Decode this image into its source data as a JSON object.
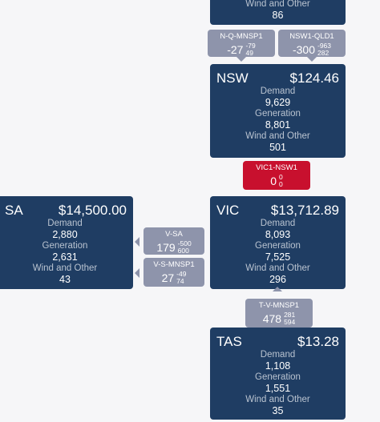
{
  "qld": {
    "wind_label": "Wind and Other",
    "wind_value": "86"
  },
  "nsw": {
    "name": "NSW",
    "price": "$124.46",
    "demand_label": "Demand",
    "demand_value": "9,629",
    "generation_label": "Generation",
    "generation_value": "8,801",
    "wind_label": "Wind and Other",
    "wind_value": "501"
  },
  "vic": {
    "name": "VIC",
    "price": "$13,712.89",
    "demand_label": "Demand",
    "demand_value": "8,093",
    "generation_label": "Generation",
    "generation_value": "7,525",
    "wind_label": "Wind and Other",
    "wind_value": "296"
  },
  "sa": {
    "name": "SA",
    "price": "$14,500.00",
    "demand_label": "Demand",
    "demand_value": "2,880",
    "generation_label": "Generation",
    "generation_value": "2,631",
    "wind_label": "Wind and Other",
    "wind_value": "43"
  },
  "tas": {
    "name": "TAS",
    "price": "$13.28",
    "demand_label": "Demand",
    "demand_value": "1,108",
    "generation_label": "Generation",
    "generation_value": "1,551",
    "wind_label": "Wind and Other",
    "wind_value": "35"
  },
  "interconnectors": {
    "nqmnsp1": {
      "name": "N-Q-MNSP1",
      "flow": "-27",
      "upper": "-79",
      "lower": "49"
    },
    "nsw1qld1": {
      "name": "NSW1-QLD1",
      "flow": "-300",
      "upper": "-963",
      "lower": "282"
    },
    "vic1nsw1": {
      "name": "VIC1-NSW1",
      "flow": "0",
      "upper": "0",
      "lower": "0"
    },
    "vsa": {
      "name": "V-SA",
      "flow": "179",
      "upper": "-500",
      "lower": "600"
    },
    "vsmnsp1": {
      "name": "V-S-MNSP1",
      "flow": "27",
      "upper": "-49",
      "lower": "74"
    },
    "tvmnsp1": {
      "name": "T-V-MNSP1",
      "flow": "478",
      "upper": "281",
      "lower": "594"
    }
  },
  "colors": {
    "region": "#1f3d63",
    "interconnector": "#8e94ab",
    "interconnector_alert": "#c8102e"
  }
}
